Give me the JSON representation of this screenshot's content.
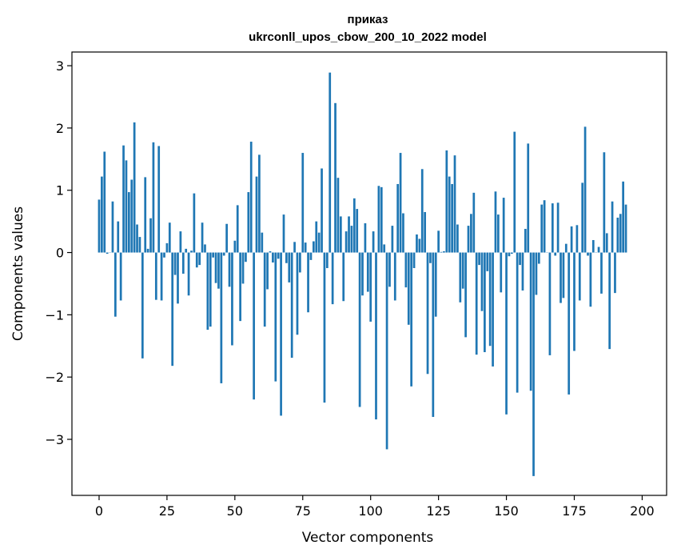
{
  "chart_data": {
    "type": "bar",
    "title_line1": "приказ",
    "title_line2": "ukrconll_upos_cbow_200_10_2022 model",
    "xlabel": "Vector components",
    "ylabel": "Components values",
    "xlim": [
      -10,
      209
    ],
    "ylim": [
      -3.9,
      3.22
    ],
    "xticks": [
      0,
      25,
      50,
      75,
      100,
      125,
      150,
      175,
      200
    ],
    "yticks": [
      -3,
      -2,
      -1,
      0,
      1,
      2,
      3
    ],
    "ytick_labels": [
      "−3",
      "−2",
      "−1",
      "0",
      "1",
      "2",
      "3"
    ],
    "bar_color": "#1f77b4",
    "values": [
      0.85,
      1.22,
      1.62,
      -0.02,
      0.0,
      0.82,
      -1.03,
      0.5,
      -0.77,
      1.72,
      1.48,
      0.97,
      1.17,
      2.09,
      0.45,
      0.25,
      -1.7,
      1.21,
      0.06,
      0.55,
      1.77,
      -0.76,
      1.71,
      -0.77,
      -0.08,
      0.15,
      0.48,
      -1.82,
      -0.36,
      -0.82,
      0.34,
      -0.34,
      0.06,
      -0.69,
      0.03,
      0.95,
      -0.24,
      -0.2,
      0.48,
      0.13,
      -1.24,
      -1.19,
      -0.08,
      -0.49,
      -0.58,
      -2.1,
      -0.05,
      0.46,
      -0.55,
      -1.49,
      0.19,
      0.76,
      -1.1,
      -0.5,
      -0.15,
      0.97,
      1.78,
      -2.36,
      1.22,
      1.57,
      0.32,
      -1.19,
      -0.59,
      0.02,
      -0.16,
      -2.07,
      -0.1,
      -2.62,
      0.61,
      -0.17,
      -0.48,
      -1.69,
      0.17,
      -1.32,
      -0.32,
      1.6,
      0.16,
      -0.96,
      -0.12,
      0.18,
      0.5,
      0.32,
      1.35,
      -2.41,
      -0.25,
      2.89,
      -0.83,
      2.4,
      1.2,
      0.58,
      -0.78,
      0.34,
      0.58,
      0.43,
      0.87,
      0.7,
      -2.48,
      -0.69,
      0.47,
      -0.63,
      -1.11,
      0.34,
      -2.68,
      1.07,
      1.05,
      0.13,
      -3.16,
      -0.55,
      0.43,
      -0.77,
      1.1,
      1.6,
      0.63,
      -0.56,
      -1.16,
      -2.15,
      -0.25,
      0.29,
      0.22,
      1.34,
      0.65,
      -1.95,
      -0.17,
      -2.64,
      -1.03,
      0.35,
      0.01,
      0.02,
      1.64,
      1.22,
      1.1,
      1.56,
      0.45,
      -0.8,
      -0.58,
      -1.36,
      0.43,
      0.62,
      0.96,
      -1.64,
      -0.2,
      -0.94,
      -1.6,
      -0.3,
      -1.5,
      -1.83,
      0.98,
      0.61,
      -0.64,
      0.88,
      -2.6,
      -0.06,
      -0.02,
      1.94,
      -2.25,
      -0.2,
      -0.61,
      0.38,
      1.75,
      -2.22,
      -3.59,
      -0.68,
      -0.18,
      0.77,
      0.84,
      0.0,
      -1.65,
      0.79,
      -0.05,
      0.8,
      -0.81,
      -0.73,
      0.14,
      -2.28,
      0.42,
      -1.58,
      0.44,
      -0.77,
      1.12,
      2.02,
      -0.05,
      -0.87,
      0.2,
      0.0,
      0.09,
      -0.66,
      1.61,
      0.31,
      -1.55,
      0.82,
      -0.65,
      0.56,
      0.62,
      1.14,
      0.77
    ]
  }
}
